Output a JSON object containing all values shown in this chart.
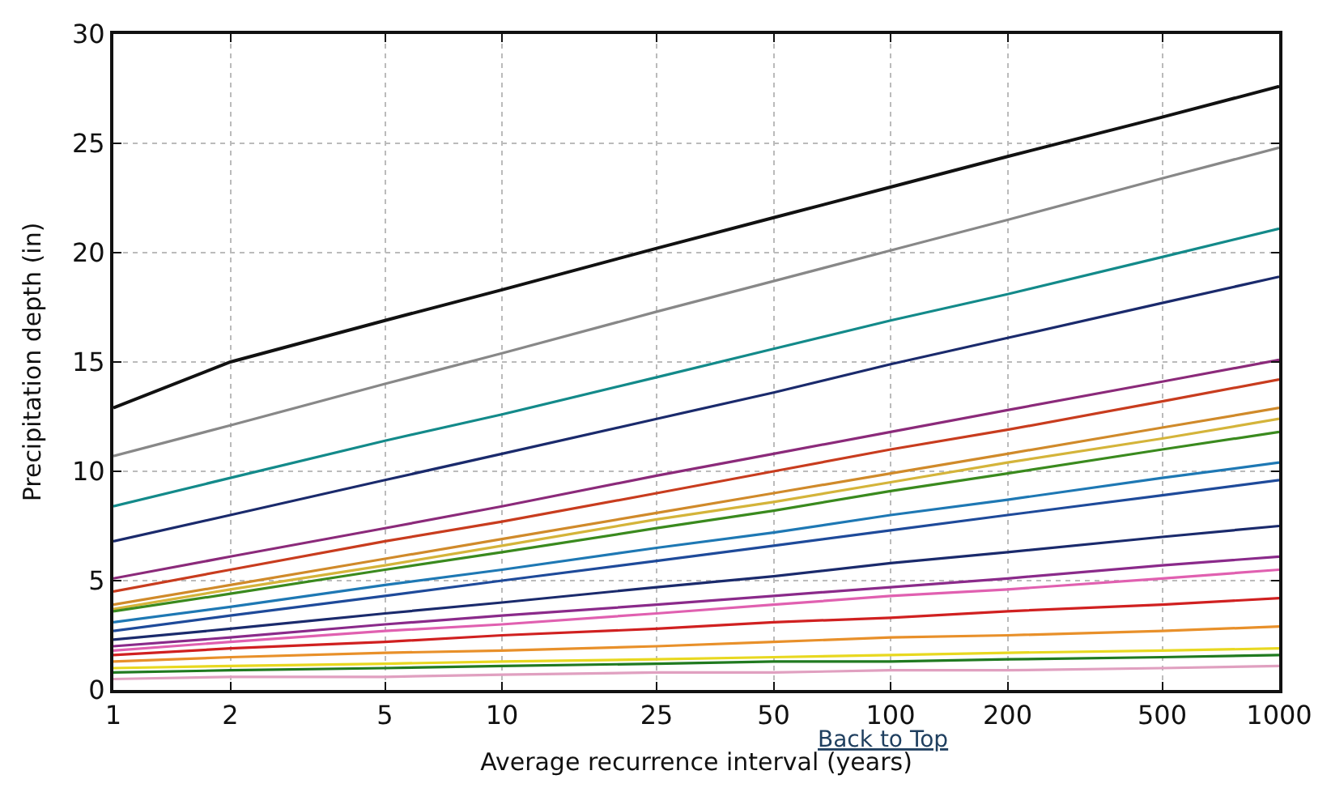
{
  "chart_data": {
    "type": "line",
    "xlabel": "Average recurrence interval (years)",
    "ylabel": "Precipitation depth (in)",
    "annotations": [
      "Back to Top"
    ],
    "x": [
      1,
      2,
      5,
      10,
      25,
      50,
      100,
      200,
      500,
      1000
    ],
    "xlim": [
      1,
      1000
    ],
    "xticks": [
      1,
      2,
      5,
      10,
      25,
      50,
      100,
      200,
      500,
      1000
    ],
    "ylim": [
      0,
      30
    ],
    "yticks": [
      0,
      5,
      10,
      15,
      20,
      25,
      30
    ],
    "log": "x",
    "grid": true,
    "marker": "none",
    "line_style": "solid",
    "series": [
      {
        "color": "#111111",
        "values": [
          12.9,
          15.0,
          16.9,
          18.3,
          20.2,
          21.6,
          23.0,
          24.4,
          26.2,
          27.6
        ]
      },
      {
        "color": "#888888",
        "values": [
          10.7,
          12.1,
          14.0,
          15.4,
          17.3,
          18.7,
          20.1,
          21.5,
          23.4,
          24.8
        ]
      },
      {
        "color": "#138a8a",
        "values": [
          8.4,
          9.7,
          11.4,
          12.6,
          14.3,
          15.6,
          16.9,
          18.1,
          19.8,
          21.1
        ]
      },
      {
        "color": "#1a2a6c",
        "values": [
          6.8,
          8.0,
          9.6,
          10.8,
          12.4,
          13.6,
          14.9,
          16.1,
          17.7,
          18.9
        ]
      },
      {
        "color": "#8b2a7a",
        "values": [
          5.1,
          6.1,
          7.4,
          8.4,
          9.8,
          10.8,
          11.8,
          12.8,
          14.1,
          15.1
        ]
      },
      {
        "color": "#c83c1e",
        "values": [
          4.5,
          5.5,
          6.8,
          7.7,
          9.0,
          10.0,
          11.0,
          11.9,
          13.2,
          14.2
        ]
      },
      {
        "color": "#d08a2a",
        "values": [
          3.9,
          4.8,
          6.0,
          6.9,
          8.1,
          9.0,
          9.9,
          10.8,
          12.0,
          12.9
        ]
      },
      {
        "color": "#d4b43a",
        "values": [
          3.7,
          4.6,
          5.7,
          6.6,
          7.8,
          8.6,
          9.5,
          10.4,
          11.5,
          12.4
        ]
      },
      {
        "color": "#3a8a1e",
        "values": [
          3.6,
          4.4,
          5.5,
          6.3,
          7.4,
          8.2,
          9.1,
          9.9,
          11.0,
          11.8
        ]
      },
      {
        "color": "#1e78b4",
        "values": [
          3.1,
          3.8,
          4.8,
          5.5,
          6.5,
          7.2,
          8.0,
          8.7,
          9.7,
          10.4
        ]
      },
      {
        "color": "#1e4a9a",
        "values": [
          2.7,
          3.4,
          4.3,
          5.0,
          5.9,
          6.6,
          7.3,
          8.0,
          8.9,
          9.6
        ]
      },
      {
        "color": "#1a2a6c",
        "values": [
          2.3,
          2.8,
          3.5,
          4.0,
          4.7,
          5.2,
          5.8,
          6.3,
          7.0,
          7.5
        ]
      },
      {
        "color": "#8a2a8a",
        "values": [
          2.0,
          2.4,
          3.0,
          3.4,
          3.9,
          4.3,
          4.7,
          5.1,
          5.7,
          6.1
        ]
      },
      {
        "color": "#e060b0",
        "values": [
          1.8,
          2.2,
          2.7,
          3.0,
          3.5,
          3.9,
          4.3,
          4.6,
          5.1,
          5.5
        ]
      },
      {
        "color": "#d02020",
        "values": [
          1.6,
          1.9,
          2.2,
          2.5,
          2.8,
          3.1,
          3.3,
          3.6,
          3.9,
          4.2
        ]
      },
      {
        "color": "#e8902a",
        "values": [
          1.3,
          1.5,
          1.7,
          1.8,
          2.0,
          2.2,
          2.4,
          2.5,
          2.7,
          2.9
        ]
      },
      {
        "color": "#e8d820",
        "values": [
          1.0,
          1.1,
          1.2,
          1.3,
          1.4,
          1.5,
          1.6,
          1.7,
          1.8,
          1.9
        ]
      },
      {
        "color": "#207a20",
        "values": [
          0.8,
          0.9,
          1.0,
          1.1,
          1.2,
          1.3,
          1.3,
          1.4,
          1.5,
          1.6
        ]
      },
      {
        "color": "#e0a0c0",
        "values": [
          0.5,
          0.6,
          0.6,
          0.7,
          0.8,
          0.8,
          0.9,
          0.9,
          1.0,
          1.1
        ]
      }
    ]
  }
}
